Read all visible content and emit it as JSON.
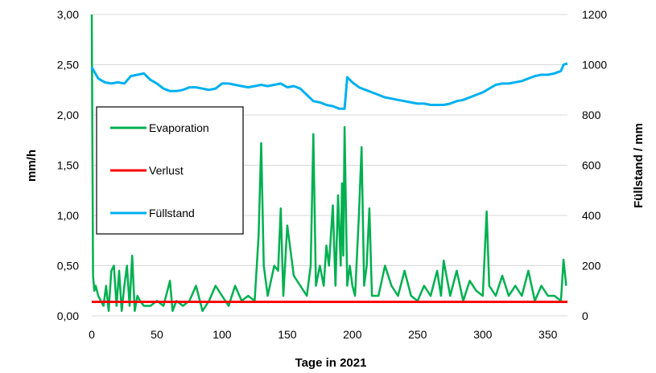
{
  "chart_data": {
    "type": "line",
    "title": "",
    "xlabel": "Tage in 2021",
    "ylabel": "mm/h",
    "y2label": "Füllstand / mm",
    "xlim": [
      0,
      365
    ],
    "ylim": [
      0,
      3
    ],
    "y2lim": [
      0,
      1200
    ],
    "x_ticks": [
      0,
      50,
      100,
      150,
      200,
      250,
      300,
      350
    ],
    "y_ticks": [
      "0,00",
      "0,50",
      "1,00",
      "1,50",
      "2,00",
      "2,50",
      "3,00"
    ],
    "y2_ticks": [
      "0",
      "200",
      "400",
      "600",
      "800",
      "1000",
      "1200"
    ],
    "legend_position": "left-middle",
    "colors": {
      "evaporation": "#00b050",
      "verlust": "#ff0000",
      "fuellstand": "#00b0f0"
    },
    "legend": [
      "Evaporation",
      "Verlust",
      "Füllstand"
    ],
    "series": [
      {
        "name": "Evaporation",
        "axis": "left",
        "x": [
          0,
          1,
          2,
          3,
          5,
          7,
          9,
          11,
          13,
          15,
          17,
          19,
          21,
          23,
          25,
          27,
          29,
          31,
          33,
          35,
          37,
          40,
          45,
          50,
          55,
          60,
          62,
          65,
          70,
          75,
          80,
          85,
          90,
          95,
          100,
          105,
          110,
          115,
          120,
          125,
          128,
          130,
          132,
          135,
          140,
          143,
          145,
          147,
          150,
          155,
          160,
          165,
          168,
          170,
          172,
          175,
          178,
          180,
          182,
          185,
          187,
          189,
          191,
          192,
          193,
          194,
          195,
          196,
          198,
          200,
          202,
          205,
          207,
          209,
          211,
          213,
          215,
          220,
          225,
          230,
          235,
          240,
          245,
          250,
          255,
          260,
          265,
          268,
          270,
          275,
          280,
          285,
          290,
          295,
          300,
          303,
          305,
          310,
          315,
          320,
          325,
          330,
          335,
          340,
          345,
          350,
          355,
          360,
          362,
          364
        ],
        "values": [
          3.0,
          0.4,
          0.25,
          0.3,
          0.2,
          0.15,
          0.1,
          0.3,
          0.05,
          0.45,
          0.5,
          0.1,
          0.45,
          0.05,
          0.3,
          0.5,
          0.1,
          0.6,
          0.05,
          0.2,
          0.15,
          0.1,
          0.1,
          0.15,
          0.1,
          0.35,
          0.05,
          0.15,
          0.1,
          0.15,
          0.3,
          0.05,
          0.15,
          0.3,
          0.2,
          0.1,
          0.3,
          0.15,
          0.2,
          0.15,
          0.8,
          1.72,
          0.5,
          0.2,
          0.5,
          0.45,
          1.07,
          0.2,
          0.9,
          0.4,
          0.3,
          0.2,
          0.5,
          1.81,
          0.3,
          0.5,
          0.3,
          0.7,
          0.5,
          1.1,
          0.3,
          1.2,
          0.5,
          1.32,
          0.6,
          1.88,
          1.1,
          0.3,
          0.5,
          0.3,
          0.2,
          1.0,
          1.68,
          0.3,
          0.5,
          1.07,
          0.2,
          0.2,
          0.5,
          0.3,
          0.2,
          0.45,
          0.2,
          0.15,
          0.3,
          0.2,
          0.45,
          0.2,
          0.55,
          0.2,
          0.45,
          0.15,
          0.35,
          0.25,
          0.2,
          1.04,
          0.3,
          0.2,
          0.4,
          0.2,
          0.3,
          0.2,
          0.45,
          0.15,
          0.3,
          0.2,
          0.2,
          0.15,
          0.56,
          0.3
        ]
      },
      {
        "name": "Verlust",
        "axis": "left",
        "x": [
          0,
          365
        ],
        "values": [
          0.14,
          0.14
        ]
      },
      {
        "name": "Füllstand",
        "axis": "right",
        "x": [
          0,
          5,
          10,
          15,
          20,
          25,
          30,
          35,
          40,
          45,
          50,
          55,
          60,
          65,
          70,
          75,
          80,
          85,
          90,
          95,
          100,
          105,
          110,
          115,
          120,
          125,
          130,
          135,
          140,
          145,
          150,
          155,
          160,
          165,
          170,
          175,
          180,
          185,
          190,
          194,
          196,
          200,
          205,
          210,
          215,
          220,
          225,
          230,
          235,
          240,
          245,
          250,
          255,
          260,
          265,
          270,
          275,
          280,
          285,
          290,
          295,
          300,
          305,
          310,
          315,
          320,
          325,
          330,
          335,
          340,
          345,
          350,
          355,
          360,
          362,
          365
        ],
        "values": [
          990,
          945,
          930,
          925,
          930,
          925,
          955,
          960,
          965,
          940,
          925,
          905,
          895,
          895,
          900,
          910,
          910,
          905,
          900,
          905,
          925,
          925,
          920,
          915,
          910,
          915,
          920,
          915,
          920,
          925,
          910,
          915,
          905,
          880,
          855,
          850,
          840,
          835,
          825,
          825,
          950,
          930,
          910,
          900,
          890,
          880,
          870,
          865,
          860,
          855,
          850,
          845,
          845,
          840,
          840,
          840,
          845,
          855,
          860,
          870,
          880,
          890,
          905,
          920,
          925,
          925,
          930,
          935,
          945,
          955,
          960,
          960,
          965,
          975,
          1000,
          1005
        ]
      }
    ]
  }
}
